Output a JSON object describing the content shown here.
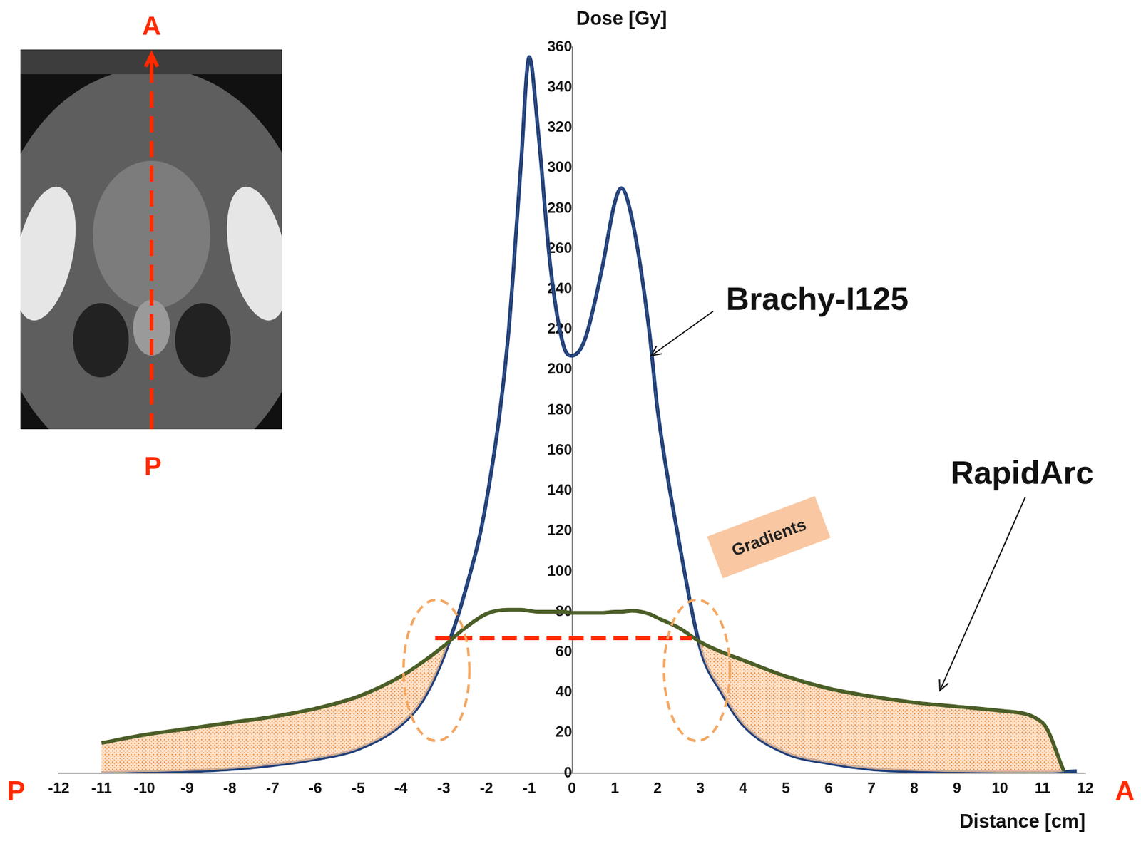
{
  "chart_data": {
    "type": "line",
    "x_label": "Distance [cm]",
    "y_label": "Dose [Gy]",
    "x": [
      -11,
      -10,
      -9,
      -8,
      -7,
      -6,
      -5,
      -4,
      -3.5,
      -3,
      -2.5,
      -2,
      -1.5,
      -1.2,
      -1,
      -0.8,
      -0.5,
      -0.2,
      0,
      0.3,
      0.7,
      1,
      1.15,
      1.4,
      1.8,
      2,
      2.5,
      3,
      3.5,
      4,
      5,
      6,
      7,
      8,
      9,
      10,
      11,
      11.5,
      11.8
    ],
    "series": [
      {
        "name": "Brachy-I125",
        "color": "#1f3f7a",
        "values": [
          0,
          0.5,
          1,
          2,
          4,
          7,
          12,
          24,
          36,
          58,
          90,
          135,
          215,
          300,
          355,
          320,
          250,
          212,
          207,
          215,
          250,
          283,
          290,
          275,
          220,
          180,
          115,
          62,
          40,
          24,
          10,
          5,
          2,
          1,
          0.5,
          0.3,
          0.2,
          0.5,
          1
        ]
      },
      {
        "name": "RapidArc",
        "color": "#4b5e27",
        "values": [
          15,
          19,
          22,
          25,
          28,
          32,
          38,
          48,
          55,
          63,
          72,
          79,
          81,
          81,
          80.5,
          80,
          80,
          80,
          79.5,
          79.5,
          79.5,
          80,
          80,
          80.5,
          79,
          77,
          72,
          65,
          60,
          56,
          48,
          42,
          38,
          35,
          33,
          31,
          25,
          1,
          null
        ]
      }
    ],
    "xlim": [
      -12,
      12
    ],
    "xticks": [
      -12,
      -11,
      -10,
      -9,
      -8,
      -7,
      -6,
      -5,
      -4,
      -3,
      -2,
      -1,
      0,
      1,
      2,
      3,
      4,
      5,
      6,
      7,
      8,
      9,
      10,
      11,
      12
    ],
    "ylim": [
      0,
      360
    ],
    "yticks": [
      0,
      20,
      40,
      60,
      80,
      100,
      120,
      140,
      160,
      180,
      200,
      220,
      240,
      260,
      280,
      300,
      320,
      340,
      360
    ],
    "grid": false,
    "annotation": "Gradients",
    "reference_line": {
      "x": [
        -3.2,
        2.8
      ],
      "y": 67,
      "color": "#ff2a00"
    },
    "end_labels": {
      "left": "P",
      "right": "A"
    },
    "inset_labels": {
      "top": "A",
      "bottom": "P"
    }
  }
}
